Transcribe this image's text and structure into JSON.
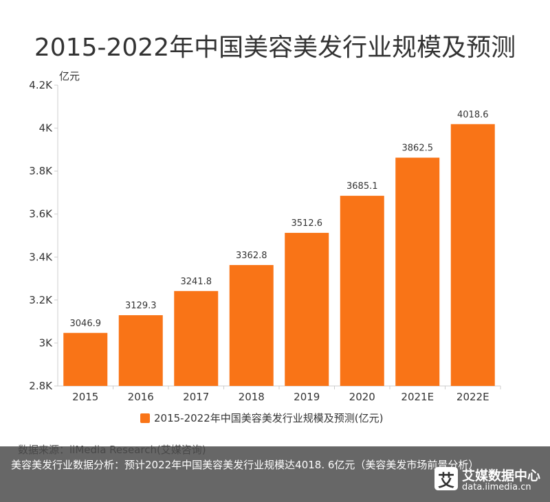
{
  "title": "2015-2022年中国美容美发行业规模及预测",
  "unit": "亿元",
  "colors": {
    "bar": "#F97417",
    "axis": "#cccccc",
    "text": "#333333"
  },
  "chart_data": {
    "type": "bar",
    "categories": [
      "2015",
      "2016",
      "2017",
      "2018",
      "2019",
      "2020",
      "2021E",
      "2022E"
    ],
    "series": [
      {
        "name": "2015-2022年中国美容美发行业规模及预测(亿元)",
        "values": [
          3046.9,
          3129.3,
          3241.8,
          3362.8,
          3512.6,
          3685.1,
          3862.5,
          4018.6
        ]
      }
    ],
    "value_labels": [
      "3046.9",
      "3129.3",
      "3241.8",
      "3362.8",
      "3512.6",
      "3685.1",
      "3862.5",
      "4018.6"
    ],
    "ylim": [
      2800,
      4200
    ],
    "yticks": [
      2800,
      3000,
      3200,
      3400,
      3600,
      3800,
      4000,
      4200
    ],
    "ytick_labels": [
      "2.8K",
      "3K",
      "3.2K",
      "3.4K",
      "3.6K",
      "3.8K",
      "4K",
      "4.2K"
    ],
    "ylabel": "亿元",
    "grid": false,
    "legend_position": "bottom"
  },
  "legend": {
    "label": "2015-2022年中国美容美发行业规模及预测(亿元)"
  },
  "source": "数据来源：iiMedia Research(艾媒咨询)",
  "caption": "美容美发行业数据分析：预计2022年中国美容美发行业规模达4018. 6亿元（美容美发市场前景分析）",
  "brand": {
    "mark": "艾",
    "name": "艾媒数据中心",
    "url": "data.iimedia.cn"
  }
}
